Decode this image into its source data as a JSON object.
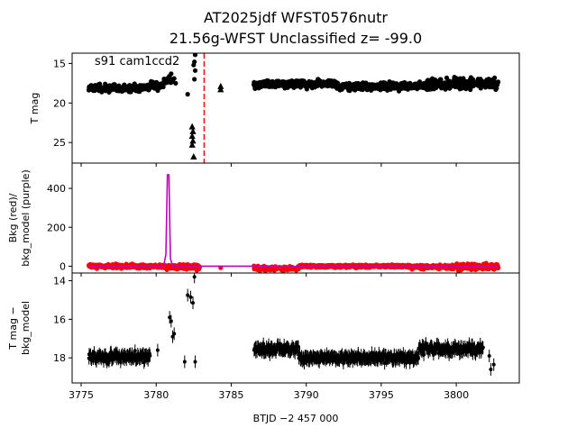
{
  "chart_data": [
    {
      "type": "scatter",
      "panel": "top",
      "title_line1": "AT2025jdf  WFST0576nutr",
      "title_line2": "21.56g-WFST Unclassified z= -99.0",
      "ylabel": "T mag",
      "yaxis_inverted": true,
      "ylim": [
        27.6,
        13.7
      ],
      "xlim": [
        3774.4,
        3804.2
      ],
      "yticks": [
        15,
        20,
        25
      ],
      "annotation": "s91 cam1ccd2",
      "vline_x": 3783.2,
      "vline_color": "#ff0000",
      "marker_color": "#000000",
      "series": [
        {
          "marker": "dot",
          "segments": [
            {
              "x_start": 3775.5,
              "x_end": 3779.6,
              "y_center": 18.1,
              "spread": 0.6
            },
            {
              "x_start": 3779.6,
              "x_end": 3780.5,
              "y_center": 17.8,
              "spread": 0.7
            },
            {
              "x_start": 3780.5,
              "x_end": 3781.0,
              "y_center": 17.2,
              "spread": 0.8
            },
            {
              "x_start": 3786.5,
              "x_end": 3792.0,
              "y_center": 17.6,
              "spread": 0.7
            },
            {
              "x_start": 3792.0,
              "x_end": 3798.0,
              "y_center": 17.9,
              "spread": 0.7
            },
            {
              "x_start": 3798.0,
              "x_end": 3802.8,
              "y_center": 17.5,
              "spread": 1.0
            }
          ],
          "points": [
            {
              "x": 3780.9,
              "y": 16.7
            },
            {
              "x": 3781.0,
              "y": 16.3
            },
            {
              "x": 3781.1,
              "y": 17.3
            },
            {
              "x": 3781.2,
              "y": 16.9
            },
            {
              "x": 3781.3,
              "y": 17.5
            },
            {
              "x": 3782.1,
              "y": 18.9
            },
            {
              "x": 3782.6,
              "y": 13.9
            },
            {
              "x": 3782.55,
              "y": 14.8
            },
            {
              "x": 3782.5,
              "y": 15.2
            },
            {
              "x": 3782.6,
              "y": 15.9
            },
            {
              "x": 3782.55,
              "y": 17.0
            }
          ]
        },
        {
          "marker": "triangle",
          "points": [
            {
              "x": 3782.4,
              "y": 23.0
            },
            {
              "x": 3782.45,
              "y": 23.6
            },
            {
              "x": 3782.4,
              "y": 24.2
            },
            {
              "x": 3782.45,
              "y": 24.8
            },
            {
              "x": 3782.4,
              "y": 25.3
            },
            {
              "x": 3782.5,
              "y": 26.8
            },
            {
              "x": 3784.3,
              "y": 17.9
            },
            {
              "x": 3784.3,
              "y": 18.3
            }
          ]
        }
      ]
    },
    {
      "type": "line",
      "panel": "middle",
      "ylabel_line1": "Bkg (red)/",
      "ylabel_line2": "bkg_model (purple)",
      "ylim": [
        -35,
        530
      ],
      "xlim": [
        3774.4,
        3804.2
      ],
      "yticks": [
        0,
        200,
        400
      ],
      "series": [
        {
          "name": "Bkg",
          "color": "#ff0000",
          "marker": "dot",
          "segments": [
            {
              "x_start": 3775.5,
              "x_end": 3780.6,
              "y_center": 0,
              "spread": 14
            },
            {
              "x_start": 3780.6,
              "x_end": 3782.9,
              "y_center": -4,
              "spread": 18
            },
            {
              "x_start": 3786.5,
              "x_end": 3789.5,
              "y_center": -12,
              "spread": 16
            },
            {
              "x_start": 3789.5,
              "x_end": 3797.0,
              "y_center": 0,
              "spread": 10
            },
            {
              "x_start": 3797.0,
              "x_end": 3800.0,
              "y_center": -4,
              "spread": 14
            },
            {
              "x_start": 3800.0,
              "x_end": 3802.8,
              "y_center": -2,
              "spread": 24
            }
          ],
          "points": [
            {
              "x": 3784.3,
              "y": -8
            }
          ]
        },
        {
          "name": "bkg_model",
          "color": "#bf00bf",
          "points": [
            {
              "x": 3775.5,
              "y": 0
            },
            {
              "x": 3780.5,
              "y": 0
            },
            {
              "x": 3780.65,
              "y": 60
            },
            {
              "x": 3780.75,
              "y": 470
            },
            {
              "x": 3780.85,
              "y": 470
            },
            {
              "x": 3780.95,
              "y": 40
            },
            {
              "x": 3781.1,
              "y": 0
            },
            {
              "x": 3782.9,
              "y": 0
            },
            {
              "x": 3784.3,
              "y": 0
            },
            {
              "x": 3786.5,
              "y": 0
            },
            {
              "x": 3788.5,
              "y": -6
            },
            {
              "x": 3790.0,
              "y": 0
            },
            {
              "x": 3797.0,
              "y": 0
            },
            {
              "x": 3800.0,
              "y": -2
            },
            {
              "x": 3802.8,
              "y": 0
            }
          ]
        }
      ]
    },
    {
      "type": "scatter",
      "panel": "bottom",
      "ylabel_line1": "T mag −",
      "ylabel_line2": "bkg_model",
      "xlabel": "BTJD −2 457 000",
      "yaxis_inverted": true,
      "ylim": [
        19.3,
        13.6
      ],
      "xlim": [
        3774.4,
        3804.2
      ],
      "yticks": [
        14,
        16,
        18
      ],
      "xticks": [
        3775,
        3780,
        3785,
        3790,
        3795,
        3800
      ],
      "series": [
        {
          "marker": "dot-errorbar",
          "color": "#000000",
          "segments": [
            {
              "x_start": 3775.5,
              "x_end": 3779.6,
              "y_center": 17.95,
              "spread": 0.35
            },
            {
              "x_start": 3786.5,
              "x_end": 3789.5,
              "y_center": 17.55,
              "spread": 0.35
            },
            {
              "x_start": 3789.5,
              "x_end": 3797.5,
              "y_center": 18.0,
              "spread": 0.35
            },
            {
              "x_start": 3797.5,
              "x_end": 3801.8,
              "y_center": 17.55,
              "spread": 0.4
            }
          ],
          "points": [
            {
              "x": 3780.1,
              "y": 17.6
            },
            {
              "x": 3780.9,
              "y": 15.9
            },
            {
              "x": 3781.0,
              "y": 16.1
            },
            {
              "x": 3781.1,
              "y": 16.9
            },
            {
              "x": 3781.2,
              "y": 16.75
            },
            {
              "x": 3781.9,
              "y": 18.2
            },
            {
              "x": 3782.1,
              "y": 14.75
            },
            {
              "x": 3782.3,
              "y": 14.85
            },
            {
              "x": 3782.45,
              "y": 15.15
            },
            {
              "x": 3782.6,
              "y": 18.2
            },
            {
              "x": 3782.55,
              "y": 13.8
            },
            {
              "x": 3802.2,
              "y": 17.9
            },
            {
              "x": 3802.3,
              "y": 18.6
            },
            {
              "x": 3802.5,
              "y": 18.35
            }
          ]
        }
      ]
    }
  ]
}
